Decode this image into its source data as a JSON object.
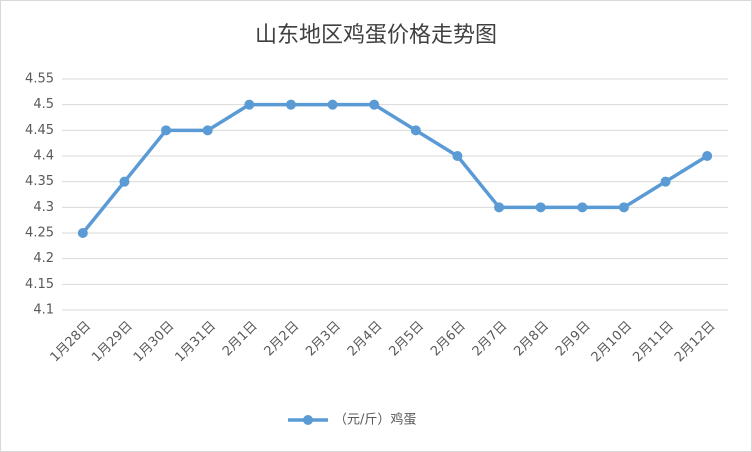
{
  "chart_data": {
    "type": "line",
    "title": "山东地区鸡蛋价格走势图",
    "categories": [
      "1月28日",
      "1月29日",
      "1月30日",
      "1月31日",
      "2月1日",
      "2月2日",
      "2月3日",
      "2月4日",
      "2月5日",
      "2月6日",
      "2月7日",
      "2月8日",
      "2月9日",
      "2月10日",
      "2月11日",
      "2月12日"
    ],
    "series": [
      {
        "name": "（元/斤）鸡蛋",
        "color": "#5b9bd5",
        "values": [
          4.25,
          4.35,
          4.45,
          4.45,
          4.5,
          4.5,
          4.5,
          4.5,
          4.45,
          4.4,
          4.3,
          4.3,
          4.3,
          4.3,
          4.35,
          4.4
        ]
      }
    ],
    "ylim": [
      4.1,
      4.55
    ],
    "yticks": [
      4.1,
      4.15,
      4.2,
      4.25,
      4.3,
      4.35,
      4.4,
      4.45,
      4.5,
      4.55
    ],
    "grid": true,
    "legend": "bottom"
  }
}
